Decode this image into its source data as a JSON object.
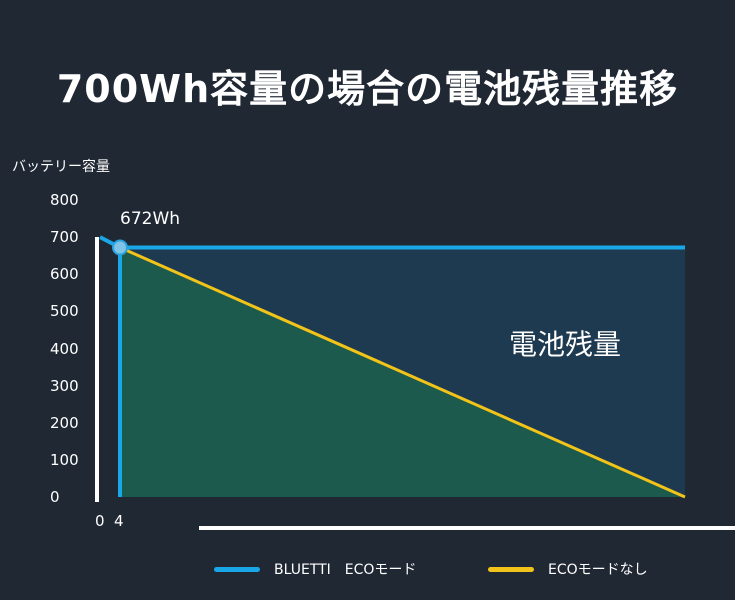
{
  "chart_data": {
    "type": "line",
    "title": "700Wh容量の場合の電池残量推移",
    "ylabel": "バッテリー容量",
    "xlabel": "",
    "ylim": [
      0,
      800
    ],
    "y_ticks": [
      "800",
      "700",
      "600",
      "500",
      "400",
      "300",
      "200",
      "100",
      "0"
    ],
    "x_ticks": [
      "0",
      "4"
    ],
    "grid": false,
    "legend": "bottom",
    "series": [
      {
        "name": "BLUETTI　ECOモード",
        "color": "#1aa7e8",
        "points": [
          [
            0,
            700
          ],
          [
            4,
            672
          ],
          [
            100,
            672
          ]
        ]
      },
      {
        "name": "ECOモードなし",
        "color": "#f2c318",
        "points": [
          [
            0,
            700
          ],
          [
            4,
            672
          ],
          [
            100,
            0
          ]
        ]
      }
    ],
    "annotations": {
      "point_label": "672Wh",
      "area_label": "電池残量"
    },
    "colors": {
      "area_upper": "#1e3a50",
      "area_lower": "#1b5a4c",
      "axis": "#ffffff"
    }
  }
}
